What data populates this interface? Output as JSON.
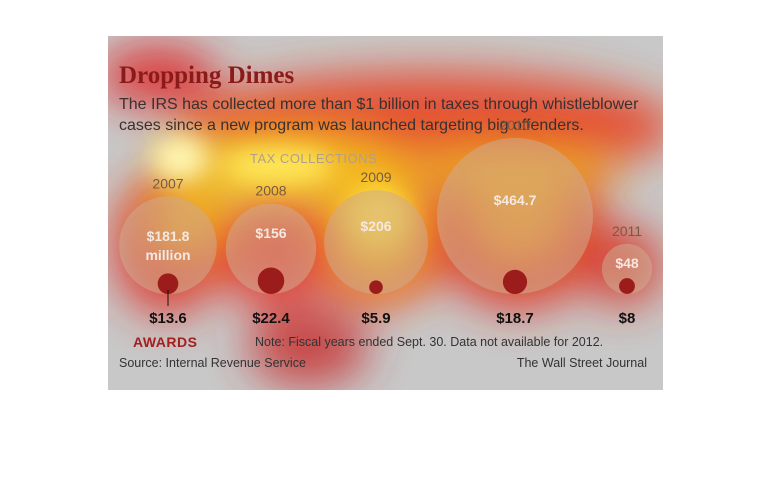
{
  "header": {
    "title": "Dropping Dimes",
    "subtitle": "The IRS has collected more than $1 billion in taxes through whistleblower cases since a new program was launched targeting big offenders.",
    "section_label": "TAX COLLECTIONS"
  },
  "footer": {
    "awards_label": "AWARDS",
    "note": "Note: Fiscal years ended Sept. 30. Data not available for 2012.",
    "source": "Source: Internal Revenue Service",
    "credit": "The Wall Street Journal"
  },
  "colors": {
    "collections_circle": "#cfa98e",
    "awards_circle": "#9c1b1b",
    "title": "#8b1a1a",
    "panel_background": "#c8c8c8"
  },
  "chart_data": {
    "type": "bubble",
    "title": "Dropping Dimes",
    "categories": [
      "2007",
      "2008",
      "2009",
      "2010",
      "2011"
    ],
    "series": [
      {
        "name": "TAX COLLECTIONS",
        "values": [
          181.8,
          156,
          206,
          464.7,
          48
        ],
        "labels": [
          "$181.8 million",
          "$156",
          "$206",
          "$464.7",
          "$48"
        ]
      },
      {
        "name": "AWARDS",
        "values": [
          13.6,
          22.4,
          5.9,
          18.7,
          8
        ],
        "labels": [
          "$13.6",
          "$22.4",
          "$5.9",
          "$18.7",
          "$8"
        ]
      }
    ],
    "units": "millions of dollars",
    "encoding": "circle area proportional to value"
  }
}
